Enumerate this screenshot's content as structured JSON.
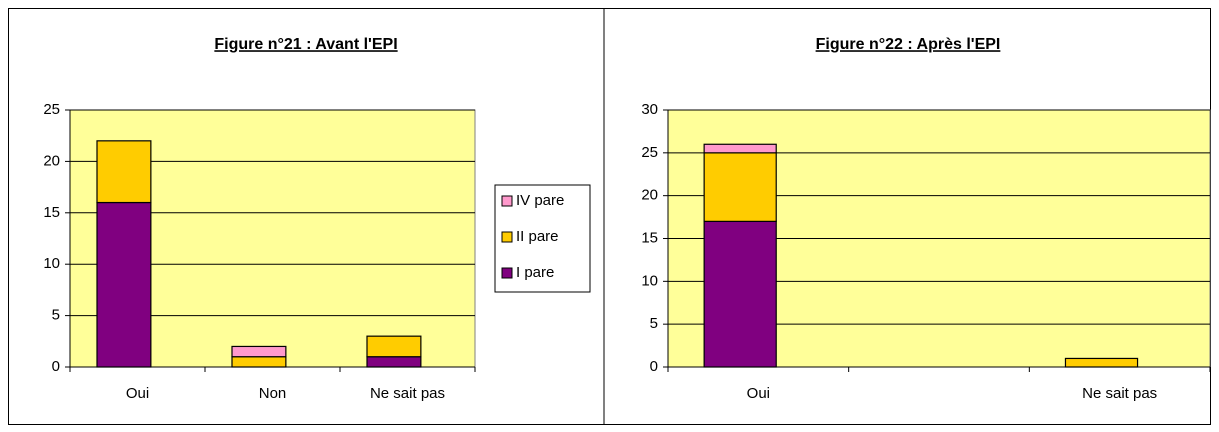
{
  "chart_data": [
    {
      "type": "bar",
      "stacked": true,
      "title": "Figure n°21 : Avant l'EPI",
      "categories": [
        "Oui",
        "Non",
        "Ne sait pas"
      ],
      "series": [
        {
          "name": "I pare",
          "color": "#800080",
          "values": [
            16,
            0,
            1
          ]
        },
        {
          "name": "II pare",
          "color": "#ffcc00",
          "values": [
            6,
            1,
            2
          ]
        },
        {
          "name": "IV pare",
          "color": "#ff99cc",
          "values": [
            0,
            1,
            0
          ]
        }
      ],
      "ylim": [
        0,
        25
      ],
      "yticks": [
        0,
        5,
        10,
        15,
        20,
        25
      ],
      "grid": true,
      "legend": "right",
      "plot_color": "#ffff99"
    },
    {
      "type": "bar",
      "stacked": true,
      "title": "Figure n°22 : Après l'EPI",
      "categories": [
        "Oui",
        null,
        "Ne sait pas"
      ],
      "series": [
        {
          "color": "#800080",
          "values": [
            17,
            0,
            0
          ]
        },
        {
          "color": "#ffcc00",
          "values": [
            8,
            0,
            1
          ]
        },
        {
          "color": "#ff99cc",
          "values": [
            1,
            0,
            0
          ]
        }
      ],
      "ylim": [
        0,
        30
      ],
      "yticks": [
        0,
        5,
        10,
        15,
        20,
        25,
        30
      ],
      "grid": true,
      "plot_color": "#ffff99"
    }
  ]
}
